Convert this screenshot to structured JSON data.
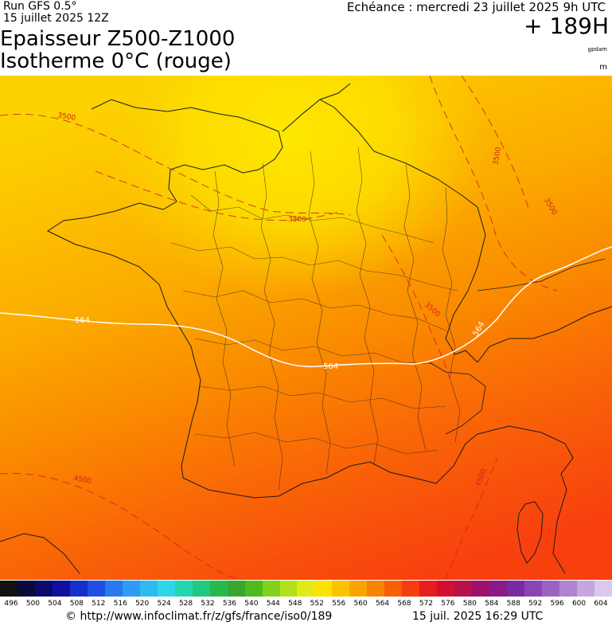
{
  "header": {
    "run": "Run GFS 0.5°",
    "run_date": "15 juillet 2025 12Z",
    "title_line1": "Epaisseur Z500-Z1000",
    "title_line2": "Isotherme 0°C (rouge)",
    "echeance": "Echéance : mercredi 23 juillet 2025 9h UTC",
    "lead_time": "+ 189H",
    "unit_gpdam": "gpdam",
    "unit_m": "m"
  },
  "map": {
    "contour_564_label_a": "564",
    "contour_564_label_b": "564",
    "contour_564_label_c": "564",
    "iso0_label_a": "3500",
    "iso0_label_b": "3500",
    "iso0_label_c": "3500",
    "iso0_label_d": "3500",
    "iso0_label_e": "3500",
    "iso0_label_f": "4500",
    "iso0_label_g": "4500",
    "colors": {
      "background_low": "#fde200",
      "background_mid": "#fba400",
      "background_high": "#f94a0f",
      "contour_564": "#ffffff",
      "iso0": "#d4221a",
      "borders": "#1a1a1a"
    }
  },
  "colorbar": {
    "ticks": [
      "496",
      "500",
      "504",
      "508",
      "512",
      "516",
      "520",
      "524",
      "528",
      "532",
      "536",
      "540",
      "544",
      "548",
      "552",
      "556",
      "560",
      "564",
      "568",
      "572",
      "576",
      "580",
      "584",
      "588",
      "592",
      "596",
      "600",
      "604"
    ],
    "colors": [
      "#111111",
      "#0a0a3c",
      "#0a0a6e",
      "#1010a0",
      "#1530c8",
      "#1e50e6",
      "#2878f0",
      "#2e9bf5",
      "#2fbaf2",
      "#2ed6e6",
      "#22d6b0",
      "#20c880",
      "#28b850",
      "#36a832",
      "#4ebc1e",
      "#80d21a",
      "#b2e01a",
      "#e0ea14",
      "#fde200",
      "#fcc400",
      "#fba400",
      "#f98200",
      "#f85f00",
      "#f73c10",
      "#e81c1c",
      "#d0102c",
      "#b8104a",
      "#a0106a",
      "#8a1a86",
      "#7a2aa0",
      "#8a44b4",
      "#9c62c2",
      "#b084d0",
      "#c6a6de",
      "#dcc8ec"
    ]
  },
  "footer": {
    "url": "© http://www.infoclimat.fr/z/gfs/france/iso0/189",
    "timestamp": "15 juil. 2025 16:29 UTC"
  }
}
